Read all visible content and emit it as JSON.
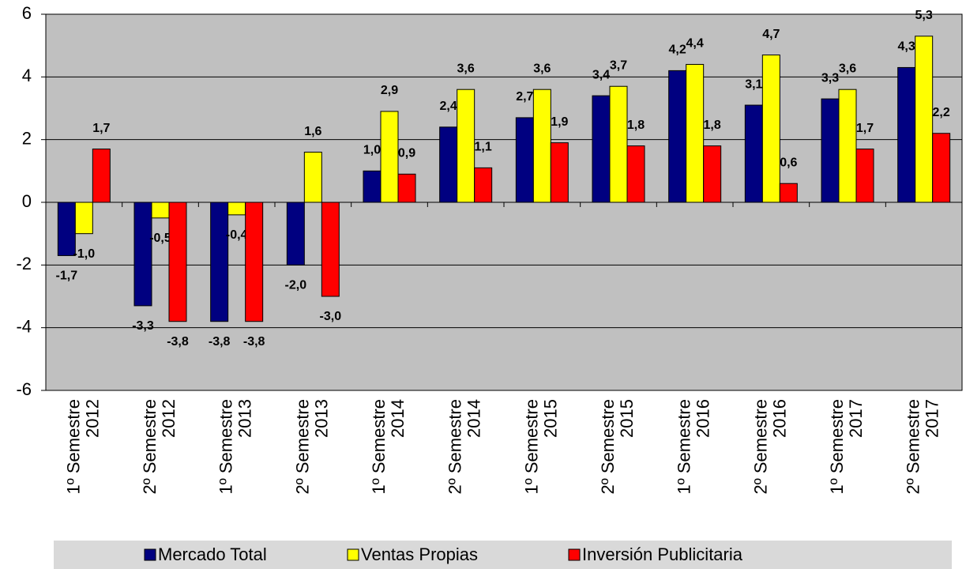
{
  "chart_data": {
    "type": "bar",
    "categories": [
      "1º Semestre 2012",
      "2º Semestre 2012",
      "1º Semestre 2013",
      "2º Semestre 2013",
      "1º Semestre 2014",
      "2º Semestre 2014",
      "1º Semestre 2015",
      "2º Semestre 2015",
      "1º Semestre 2016",
      "2º Semestre 2016",
      "1º Semestre 2017",
      "2º Semestre 2017"
    ],
    "series": [
      {
        "name": "Mercado Total",
        "color": "#000080",
        "values": [
          -1.7,
          -3.3,
          -3.8,
          -2.0,
          1.0,
          2.4,
          2.7,
          3.4,
          4.2,
          3.1,
          3.3,
          4.3
        ],
        "value_labels": [
          "-1,7",
          "-3,3",
          "-3,8",
          "-2,0",
          "1,0",
          "2,4",
          "2,7",
          "3,4",
          "4,2",
          "3,1",
          "3,3",
          "4,3"
        ]
      },
      {
        "name": "Ventas Propias",
        "color": "#ffff00",
        "values": [
          -1.0,
          -0.5,
          -0.4,
          1.6,
          2.9,
          3.6,
          3.6,
          3.7,
          4.4,
          4.7,
          3.6,
          5.3
        ],
        "value_labels": [
          "-1,0",
          "-0,5",
          "-0,4",
          "1,6",
          "2,9",
          "3,6",
          "3,6",
          "3,7",
          "4,4",
          "4,7",
          "3,6",
          "5,3"
        ]
      },
      {
        "name": "Inversión Publicitaria",
        "color": "#ff0000",
        "values": [
          1.7,
          -3.8,
          -3.8,
          -3.0,
          0.9,
          1.1,
          1.9,
          1.8,
          1.8,
          0.6,
          1.7,
          2.2
        ],
        "value_labels": [
          "1,7",
          "-3,8",
          "-3,8",
          "-3,0",
          "0,9",
          "1,1",
          "1,9",
          "1,8",
          "1,8",
          "0,6",
          "1,7",
          "2,2"
        ]
      }
    ],
    "ylim": [
      -6,
      6
    ],
    "yticks": [
      -6,
      -4,
      -2,
      0,
      2,
      4,
      6
    ],
    "grid": true,
    "legend": "bottom"
  }
}
